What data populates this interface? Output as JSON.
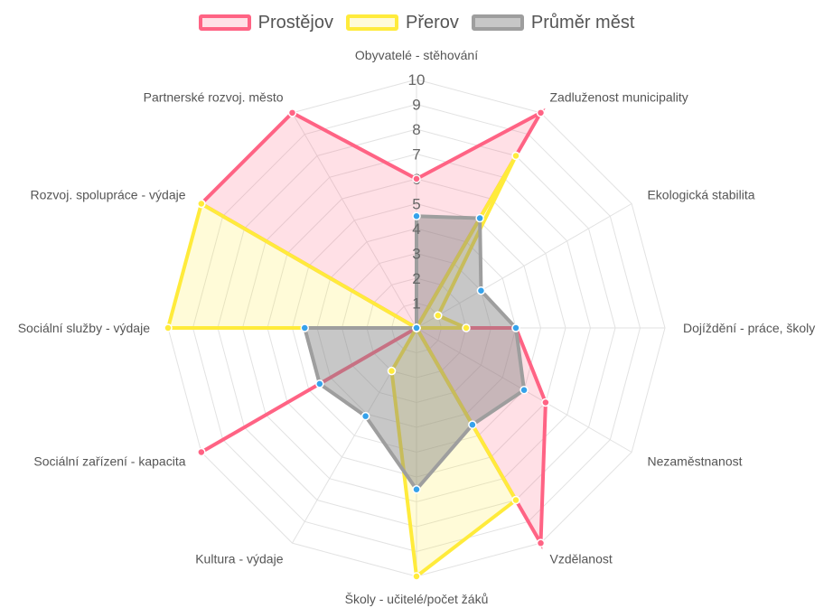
{
  "chart_data": {
    "type": "radar",
    "labels": [
      "Obyvatelé - stěhování",
      "Zadluženost municipality",
      "Ekologická stabilita",
      "Dojíždění - práce, školy",
      "Nezaměstnanost",
      "Vzdělanost",
      "Školy - učitelé/počet žáků",
      "Kultura - výdaje",
      "Sociální zařízení - kapacita",
      "Sociální služby - výdaje",
      "Rozvoj. spolupráce - výdaje",
      "Partnerské rozvoj. město"
    ],
    "ticks": [
      "1",
      "2",
      "3",
      "4",
      "5",
      "6",
      "7",
      "8",
      "9",
      "10"
    ],
    "scale": {
      "min": 0,
      "max": 10
    },
    "legend_position": "top",
    "series": [
      {
        "name": "Prostějov",
        "values": [
          6,
          10,
          0,
          4,
          6,
          10,
          0,
          0,
          10,
          0,
          10,
          10
        ],
        "color": "#ff6384",
        "fill": "rgba(255,99,132,0.2)"
      },
      {
        "name": "Přerov",
        "values": [
          0,
          8,
          1,
          2,
          0,
          8,
          10,
          2,
          0,
          10,
          10,
          0
        ],
        "color": "#ffeb3b",
        "fill": "rgba(255,235,59,0.2)"
      },
      {
        "name": "Průměr měst",
        "values": [
          4.5,
          5.1,
          3,
          4,
          5,
          4.5,
          6.5,
          4.1,
          4.5,
          4.5,
          0,
          0
        ],
        "color": "#9e9e9e",
        "fill": "rgba(130,130,130,0.45)",
        "point_color": "#36a2eb"
      }
    ]
  }
}
